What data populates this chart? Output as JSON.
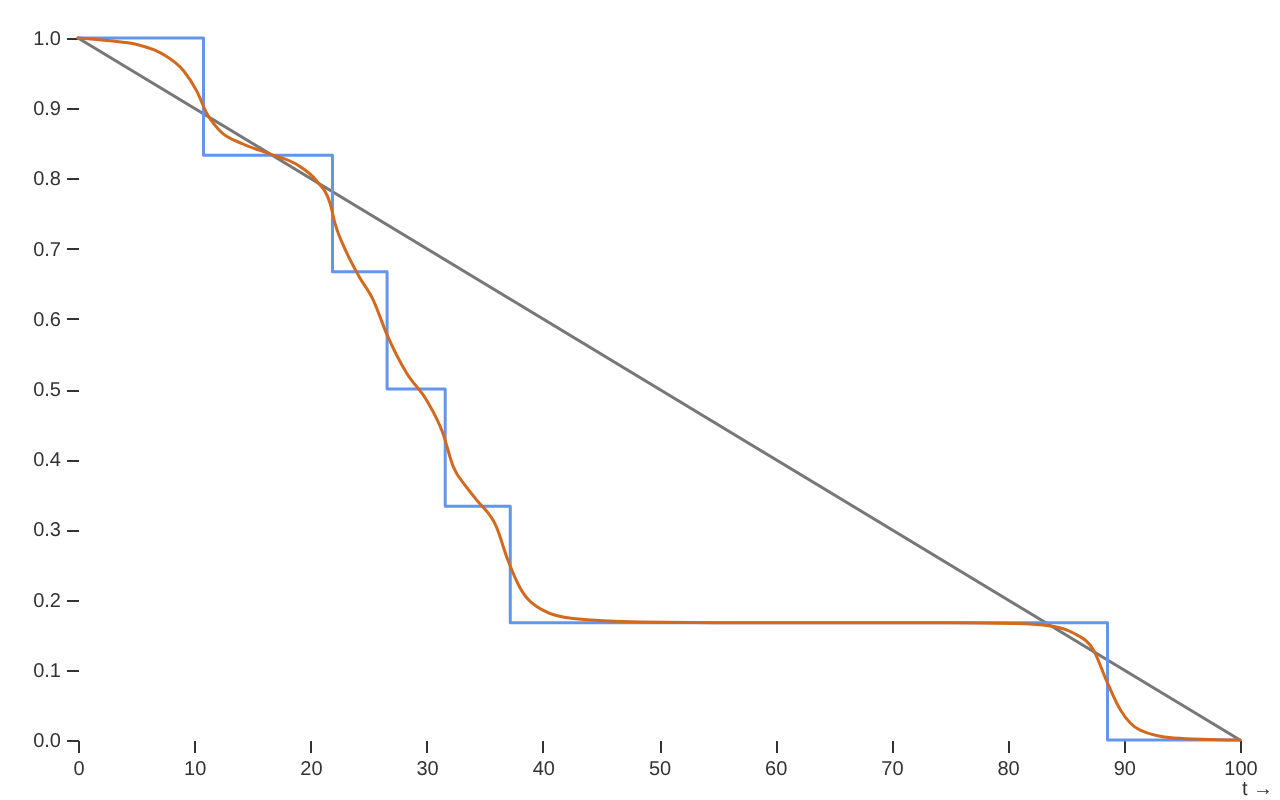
{
  "chart_data": {
    "type": "line",
    "xlabel": "t →",
    "xlim": [
      0,
      100
    ],
    "xticks": [
      0,
      10,
      20,
      30,
      40,
      50,
      60,
      70,
      80,
      90,
      100
    ],
    "ylim": [
      0,
      1
    ],
    "yticks": [
      {
        "value": 0,
        "label": "0.0"
      },
      0.1,
      0.2,
      0.3,
      0.4,
      0.5,
      0.6,
      0.7,
      0.8,
      0.9,
      {
        "value": 1,
        "label": "1.0"
      }
    ],
    "series": [
      {
        "color": "#777777",
        "x": [
          0,
          100
        ],
        "values": [
          1,
          0
        ]
      },
      {
        "type": "step",
        "color": "#6495ed",
        "x": [
          0,
          10.8,
          21.9,
          26.6,
          31.6,
          37.2,
          88.6,
          100
        ],
        "values": [
          1,
          0.833,
          0.667,
          0.5,
          0.333,
          0.167,
          0,
          0
        ]
      },
      {
        "color": "#d2691e",
        "x": [
          0,
          2.75,
          5.0,
          7.3,
          9.1,
          10.2,
          11.1,
          12.2,
          14.2,
          16.5,
          18.8,
          20.5,
          21.7,
          22.1,
          23.1,
          24.2,
          25.4,
          26.6,
          28.3,
          30.0,
          31.4,
          32.3,
          33.4,
          34.3,
          36.0,
          37.0,
          38.0,
          40.0,
          42.6,
          48.4,
          55,
          65,
          75,
          80.5,
          83.4,
          85.7,
          87.4,
          88.5,
          89.7,
          91.4,
          94.3,
          100
        ],
        "values": [
          1,
          0.996,
          0.991,
          0.977,
          0.953,
          0.925,
          0.892,
          0.868,
          0.849,
          0.835,
          0.82,
          0.797,
          0.764,
          0.737,
          0.695,
          0.66,
          0.627,
          0.577,
          0.522,
          0.484,
          0.437,
          0.389,
          0.361,
          0.342,
          0.304,
          0.256,
          0.218,
          0.185,
          0.173,
          0.168,
          0.167,
          0.167,
          0.167,
          0.166,
          0.163,
          0.152,
          0.128,
          0.085,
          0.043,
          0.014,
          0.003,
          0
        ]
      }
    ]
  }
}
